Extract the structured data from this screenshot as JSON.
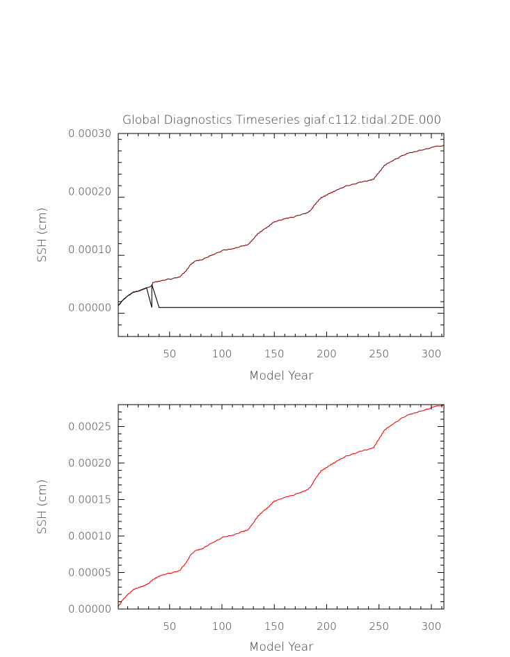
{
  "chart_data": [
    {
      "type": "line",
      "title": "Global Diagnostics Timeseries giaf.c112.tidal.2DE.000",
      "xlabel": "Model Year",
      "ylabel": "SSH (cm)",
      "xlim": [
        1,
        312
      ],
      "ylim": [
        -5e-05,
        0.0003
      ],
      "xticks": [
        "50",
        "100",
        "150",
        "200",
        "250",
        "300"
      ],
      "yticks": [
        "0.00000",
        "0.00010",
        "0.00020",
        "0.00030"
      ],
      "grid": false,
      "legend": "none",
      "series": [
        {
          "color": "#8b0000",
          "x": [
            1,
            5,
            10,
            15,
            20,
            25,
            30,
            33,
            34,
            40,
            50,
            60,
            65,
            70,
            75,
            80,
            90,
            100,
            110,
            120,
            125,
            130,
            135,
            140,
            145,
            150,
            160,
            170,
            180,
            185,
            190,
            195,
            200,
            205,
            210,
            220,
            230,
            240,
            245,
            250,
            255,
            260,
            270,
            280,
            290,
            300,
            312
          ],
          "y": [
            3e-06,
            1.2e-05,
            2e-05,
            2.6e-05,
            2.8e-05,
            3.2e-05,
            3.5e-05,
            3.7e-05,
            4.3e-05,
            4.5e-05,
            4.9e-05,
            5.3e-05,
            6.2e-05,
            7.4e-05,
            8e-05,
            8.2e-05,
            9e-05,
            9.8e-05,
            0.000101,
            0.000106,
            0.000109,
            0.000118,
            0.000128,
            0.000135,
            0.00014,
            0.000148,
            0.000153,
            0.000157,
            0.000162,
            0.000168,
            0.00018,
            0.00019,
            0.000194,
            0.000198,
            0.000203,
            0.00021,
            0.000215,
            0.000219,
            0.000221,
            0.000233,
            0.000245,
            0.00025,
            0.00026,
            0.000267,
            0.000271,
            0.000276,
            0.00028
          ]
        },
        {
          "color": "#000000",
          "x": [
            1,
            5,
            10,
            15,
            20,
            25,
            28,
            33,
            33,
            40,
            312
          ],
          "y": [
            3e-06,
            1.2e-05,
            2e-05,
            2.6e-05,
            2.8e-05,
            3.2e-05,
            3.4e-05,
            0.0,
            4e-05,
            0.0,
            0.0
          ]
        }
      ]
    },
    {
      "type": "line",
      "xlabel": "Model Year",
      "ylabel": "SSH (cm)",
      "xlim": [
        1,
        312
      ],
      "ylim": [
        0,
        0.00028
      ],
      "xticks": [
        "50",
        "100",
        "150",
        "200",
        "250",
        "300"
      ],
      "yticks": [
        "0.00000",
        "0.00005",
        "0.00010",
        "0.00015",
        "0.00020",
        "0.00025"
      ],
      "grid": false,
      "legend": "none",
      "series": [
        {
          "color": "#ff0000",
          "x": [
            1,
            5,
            10,
            15,
            20,
            25,
            30,
            35,
            40,
            50,
            60,
            65,
            70,
            75,
            80,
            90,
            100,
            110,
            120,
            125,
            130,
            135,
            140,
            145,
            150,
            160,
            170,
            180,
            185,
            190,
            195,
            200,
            205,
            210,
            220,
            230,
            240,
            245,
            250,
            255,
            260,
            270,
            280,
            290,
            300,
            312
          ],
          "y": [
            3e-06,
            1.2e-05,
            2e-05,
            2.6e-05,
            2.9e-05,
            3.2e-05,
            3.5e-05,
            4.1e-05,
            4.5e-05,
            4.9e-05,
            5.3e-05,
            6.2e-05,
            7.4e-05,
            8e-05,
            8.2e-05,
            9e-05,
            9.8e-05,
            0.000101,
            0.000106,
            0.000109,
            0.000118,
            0.000128,
            0.000135,
            0.00014,
            0.000148,
            0.000153,
            0.000157,
            0.000162,
            0.000168,
            0.00018,
            0.00019,
            0.000194,
            0.000198,
            0.000203,
            0.00021,
            0.000215,
            0.000219,
            0.000221,
            0.000233,
            0.000245,
            0.00025,
            0.00026,
            0.000267,
            0.000271,
            0.000276,
            0.00028
          ]
        }
      ]
    }
  ]
}
